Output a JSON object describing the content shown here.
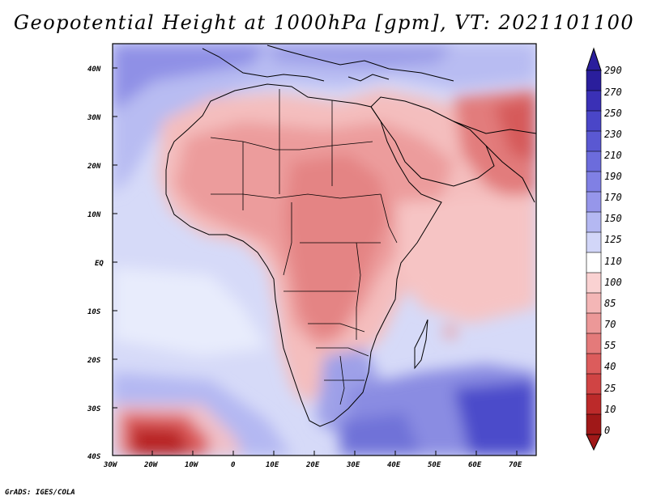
{
  "title": "Geopotential Height at 1000hPa [gpm], VT: 2021101100",
  "credit": "GrADS: IGES/COLA",
  "lat_labels": [
    "40N",
    "30N",
    "20N",
    "10N",
    "EQ",
    "10S",
    "20S",
    "30S",
    "40S"
  ],
  "lon_labels": [
    "30W",
    "20W",
    "10W",
    "0",
    "10E",
    "20E",
    "30E",
    "40E",
    "50E",
    "60E",
    "70E"
  ],
  "colorbar": {
    "labels": [
      "290",
      "270",
      "250",
      "230",
      "210",
      "190",
      "170",
      "150",
      "125",
      "110",
      "100",
      "85",
      "70",
      "55",
      "40",
      "25",
      "10",
      "0"
    ],
    "colors": [
      "#2a1e9c",
      "#3a30b6",
      "#4a46c8",
      "#5a58d2",
      "#6c6cdc",
      "#8080e4",
      "#9696ea",
      "#b4b8f2",
      "#d2d6f8",
      "#ffffff",
      "#fad2d2",
      "#f4b6b6",
      "#ec9898",
      "#e47a7a",
      "#dc5c5c",
      "#d04444",
      "#bc2a2a",
      "#a01818"
    ]
  },
  "map_regions": [
    {
      "name": "atlantic-south-west",
      "level": "125"
    },
    {
      "name": "atlantic-north-east",
      "level": "150"
    },
    {
      "name": "mediterranean-europe",
      "level": "190"
    },
    {
      "name": "north-africa",
      "level": "70"
    },
    {
      "name": "central-africa",
      "level": "55"
    },
    {
      "name": "arabia",
      "level": "70"
    },
    {
      "name": "south-asia",
      "level": "40"
    },
    {
      "name": "indian-ocean-north",
      "level": "85"
    },
    {
      "name": "indian-ocean-south",
      "level": "230"
    },
    {
      "name": "south-africa",
      "level": "170"
    },
    {
      "name": "atlantic-low",
      "level": "0"
    }
  ]
}
